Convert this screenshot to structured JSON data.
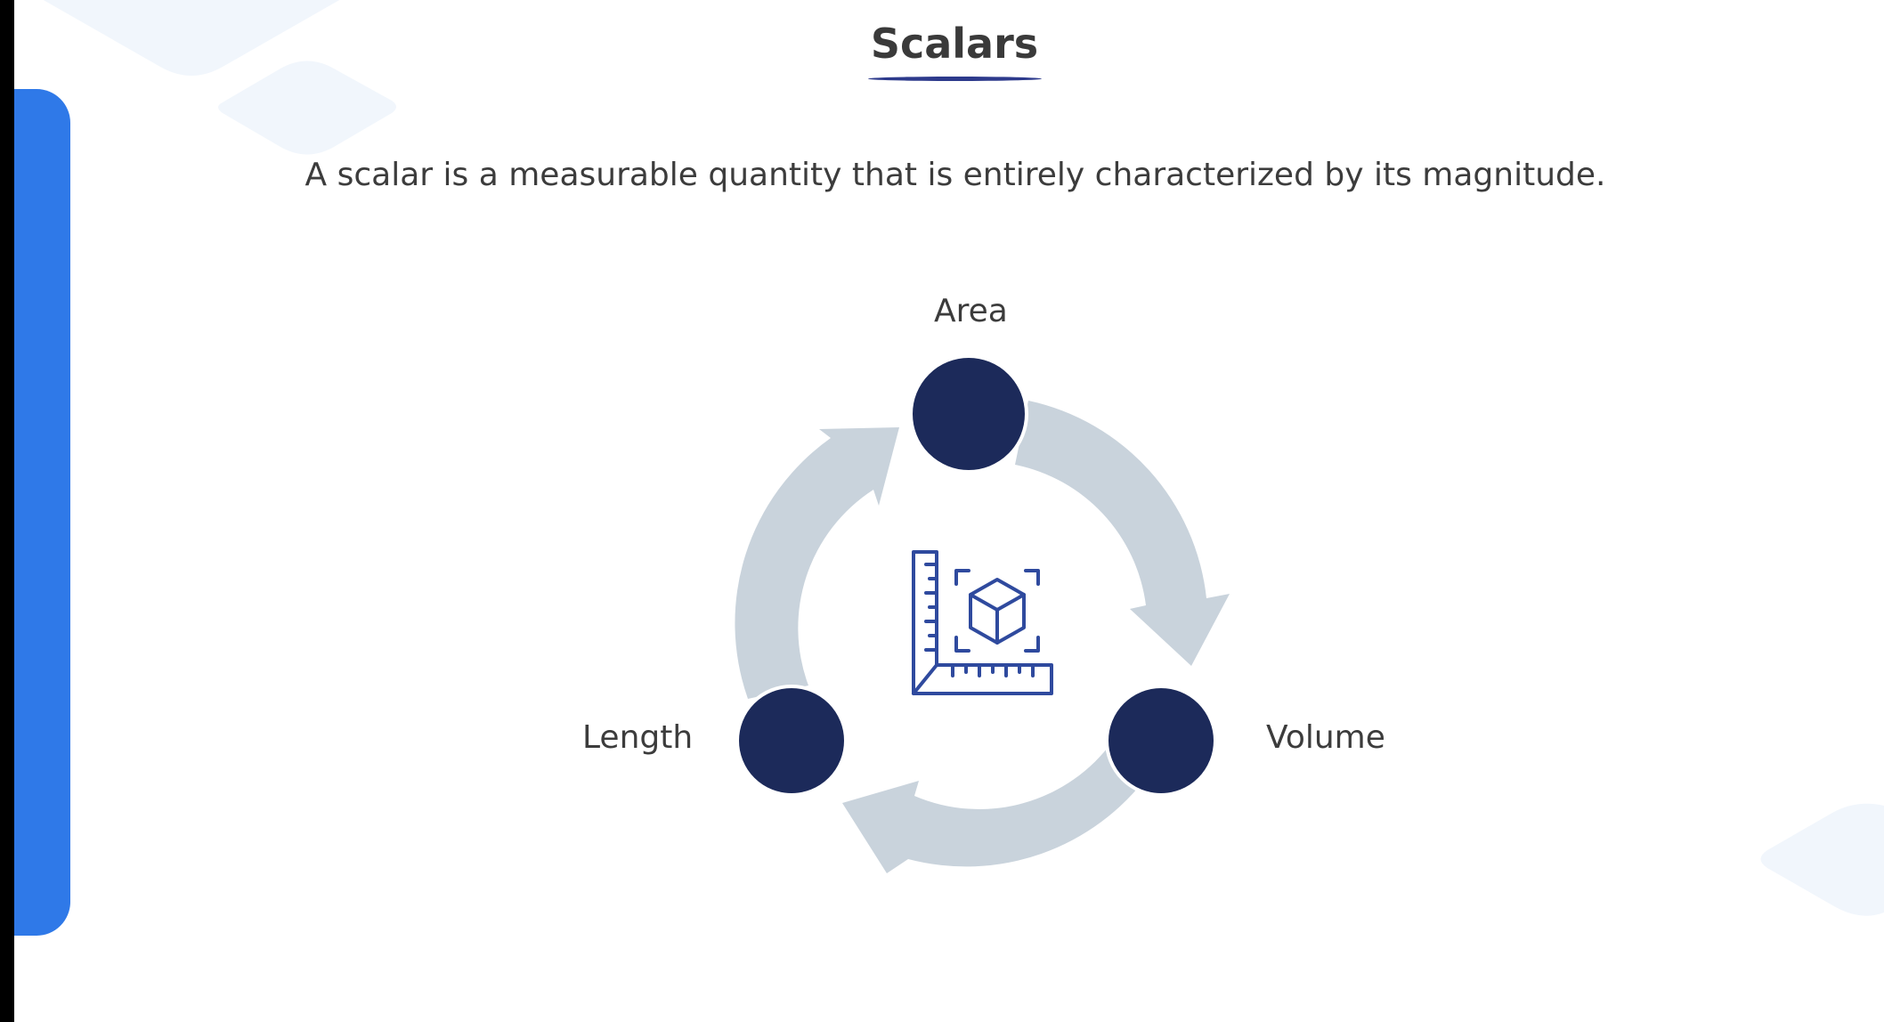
{
  "slide": {
    "title": "Scalars",
    "description": "A scalar is a measurable quantity that is entirely characterized by its magnitude."
  },
  "diagram": {
    "center_icon": "ruler-cube-measurement-icon",
    "nodes": [
      {
        "label": "Area"
      },
      {
        "label": "Volume"
      },
      {
        "label": "Length"
      }
    ]
  },
  "colors": {
    "accent": "#2f79e8",
    "node_fill": "#1c2a5a",
    "arrow_fill": "#c9d3dc",
    "icon_stroke": "#2f4a9e",
    "title_underline": "#2d3a8c",
    "background_shape": "#f1f6fc"
  }
}
